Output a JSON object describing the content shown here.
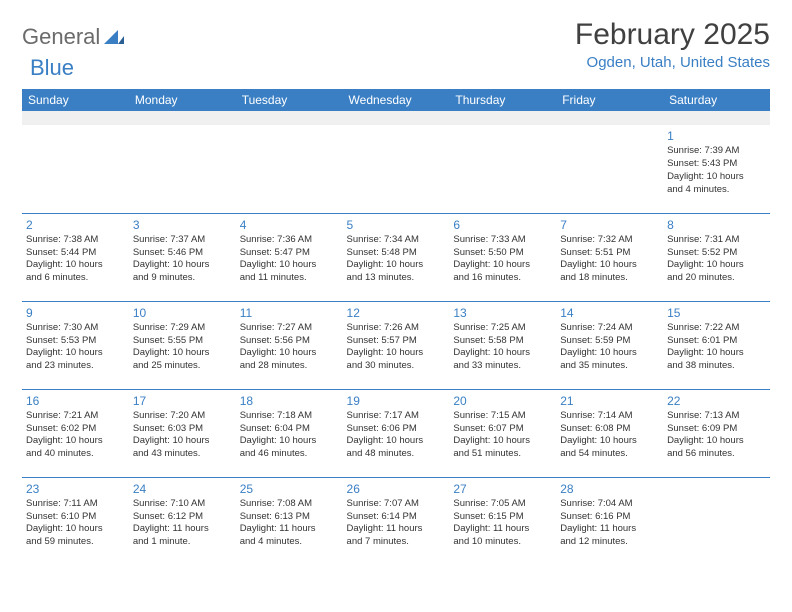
{
  "brand": {
    "name_a": "General",
    "name_b": "Blue"
  },
  "title": "February 2025",
  "location": "Ogden, Utah, United States",
  "days_of_week": [
    "Sunday",
    "Monday",
    "Tuesday",
    "Wednesday",
    "Thursday",
    "Friday",
    "Saturday"
  ],
  "colors": {
    "accent": "#3a7fc4",
    "text": "#333333",
    "header_text": "#404040"
  },
  "weeks": [
    [
      null,
      null,
      null,
      null,
      null,
      null,
      {
        "n": "1",
        "sunrise": "Sunrise: 7:39 AM",
        "sunset": "Sunset: 5:43 PM",
        "day1": "Daylight: 10 hours",
        "day2": "and 4 minutes."
      }
    ],
    [
      {
        "n": "2",
        "sunrise": "Sunrise: 7:38 AM",
        "sunset": "Sunset: 5:44 PM",
        "day1": "Daylight: 10 hours",
        "day2": "and 6 minutes."
      },
      {
        "n": "3",
        "sunrise": "Sunrise: 7:37 AM",
        "sunset": "Sunset: 5:46 PM",
        "day1": "Daylight: 10 hours",
        "day2": "and 9 minutes."
      },
      {
        "n": "4",
        "sunrise": "Sunrise: 7:36 AM",
        "sunset": "Sunset: 5:47 PM",
        "day1": "Daylight: 10 hours",
        "day2": "and 11 minutes."
      },
      {
        "n": "5",
        "sunrise": "Sunrise: 7:34 AM",
        "sunset": "Sunset: 5:48 PM",
        "day1": "Daylight: 10 hours",
        "day2": "and 13 minutes."
      },
      {
        "n": "6",
        "sunrise": "Sunrise: 7:33 AM",
        "sunset": "Sunset: 5:50 PM",
        "day1": "Daylight: 10 hours",
        "day2": "and 16 minutes."
      },
      {
        "n": "7",
        "sunrise": "Sunrise: 7:32 AM",
        "sunset": "Sunset: 5:51 PM",
        "day1": "Daylight: 10 hours",
        "day2": "and 18 minutes."
      },
      {
        "n": "8",
        "sunrise": "Sunrise: 7:31 AM",
        "sunset": "Sunset: 5:52 PM",
        "day1": "Daylight: 10 hours",
        "day2": "and 20 minutes."
      }
    ],
    [
      {
        "n": "9",
        "sunrise": "Sunrise: 7:30 AM",
        "sunset": "Sunset: 5:53 PM",
        "day1": "Daylight: 10 hours",
        "day2": "and 23 minutes."
      },
      {
        "n": "10",
        "sunrise": "Sunrise: 7:29 AM",
        "sunset": "Sunset: 5:55 PM",
        "day1": "Daylight: 10 hours",
        "day2": "and 25 minutes."
      },
      {
        "n": "11",
        "sunrise": "Sunrise: 7:27 AM",
        "sunset": "Sunset: 5:56 PM",
        "day1": "Daylight: 10 hours",
        "day2": "and 28 minutes."
      },
      {
        "n": "12",
        "sunrise": "Sunrise: 7:26 AM",
        "sunset": "Sunset: 5:57 PM",
        "day1": "Daylight: 10 hours",
        "day2": "and 30 minutes."
      },
      {
        "n": "13",
        "sunrise": "Sunrise: 7:25 AM",
        "sunset": "Sunset: 5:58 PM",
        "day1": "Daylight: 10 hours",
        "day2": "and 33 minutes."
      },
      {
        "n": "14",
        "sunrise": "Sunrise: 7:24 AM",
        "sunset": "Sunset: 5:59 PM",
        "day1": "Daylight: 10 hours",
        "day2": "and 35 minutes."
      },
      {
        "n": "15",
        "sunrise": "Sunrise: 7:22 AM",
        "sunset": "Sunset: 6:01 PM",
        "day1": "Daylight: 10 hours",
        "day2": "and 38 minutes."
      }
    ],
    [
      {
        "n": "16",
        "sunrise": "Sunrise: 7:21 AM",
        "sunset": "Sunset: 6:02 PM",
        "day1": "Daylight: 10 hours",
        "day2": "and 40 minutes."
      },
      {
        "n": "17",
        "sunrise": "Sunrise: 7:20 AM",
        "sunset": "Sunset: 6:03 PM",
        "day1": "Daylight: 10 hours",
        "day2": "and 43 minutes."
      },
      {
        "n": "18",
        "sunrise": "Sunrise: 7:18 AM",
        "sunset": "Sunset: 6:04 PM",
        "day1": "Daylight: 10 hours",
        "day2": "and 46 minutes."
      },
      {
        "n": "19",
        "sunrise": "Sunrise: 7:17 AM",
        "sunset": "Sunset: 6:06 PM",
        "day1": "Daylight: 10 hours",
        "day2": "and 48 minutes."
      },
      {
        "n": "20",
        "sunrise": "Sunrise: 7:15 AM",
        "sunset": "Sunset: 6:07 PM",
        "day1": "Daylight: 10 hours",
        "day2": "and 51 minutes."
      },
      {
        "n": "21",
        "sunrise": "Sunrise: 7:14 AM",
        "sunset": "Sunset: 6:08 PM",
        "day1": "Daylight: 10 hours",
        "day2": "and 54 minutes."
      },
      {
        "n": "22",
        "sunrise": "Sunrise: 7:13 AM",
        "sunset": "Sunset: 6:09 PM",
        "day1": "Daylight: 10 hours",
        "day2": "and 56 minutes."
      }
    ],
    [
      {
        "n": "23",
        "sunrise": "Sunrise: 7:11 AM",
        "sunset": "Sunset: 6:10 PM",
        "day1": "Daylight: 10 hours",
        "day2": "and 59 minutes."
      },
      {
        "n": "24",
        "sunrise": "Sunrise: 7:10 AM",
        "sunset": "Sunset: 6:12 PM",
        "day1": "Daylight: 11 hours",
        "day2": "and 1 minute."
      },
      {
        "n": "25",
        "sunrise": "Sunrise: 7:08 AM",
        "sunset": "Sunset: 6:13 PM",
        "day1": "Daylight: 11 hours",
        "day2": "and 4 minutes."
      },
      {
        "n": "26",
        "sunrise": "Sunrise: 7:07 AM",
        "sunset": "Sunset: 6:14 PM",
        "day1": "Daylight: 11 hours",
        "day2": "and 7 minutes."
      },
      {
        "n": "27",
        "sunrise": "Sunrise: 7:05 AM",
        "sunset": "Sunset: 6:15 PM",
        "day1": "Daylight: 11 hours",
        "day2": "and 10 minutes."
      },
      {
        "n": "28",
        "sunrise": "Sunrise: 7:04 AM",
        "sunset": "Sunset: 6:16 PM",
        "day1": "Daylight: 11 hours",
        "day2": "and 12 minutes."
      },
      null
    ]
  ]
}
